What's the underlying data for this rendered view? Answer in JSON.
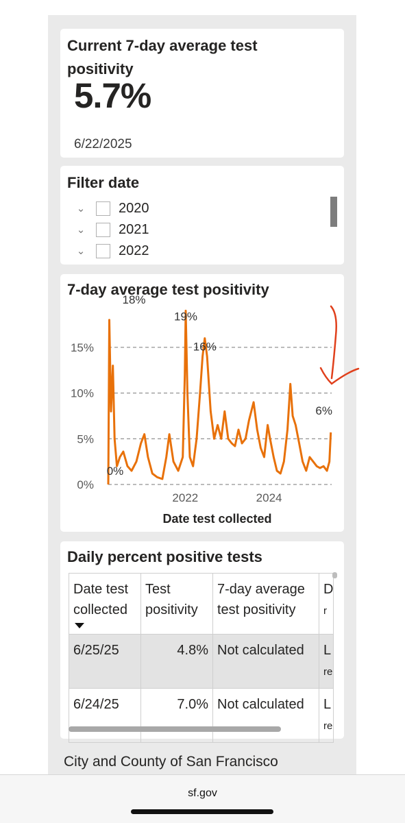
{
  "kpi": {
    "title": "Current 7-day average test positivity",
    "value": "5.7%",
    "date": "6/22/2025"
  },
  "filter": {
    "title": "Filter date",
    "items": [
      {
        "label": "2020",
        "checked": false
      },
      {
        "label": "2021",
        "checked": false
      },
      {
        "label": "2022",
        "checked": false
      }
    ]
  },
  "chart": {
    "title": "7-day average test positivity",
    "x_title": "Date test collected",
    "y_ticks": [
      "15%",
      "10%",
      "5%",
      "0%"
    ],
    "x_ticks": [
      "2022",
      "2024"
    ],
    "labels": [
      "18%",
      "19%",
      "16%",
      "6%",
      "0%"
    ],
    "line_color": "#e8710a",
    "annotation_color": "#e0401c"
  },
  "chart_data": {
    "type": "line",
    "title": "7-day average test positivity",
    "xlabel": "Date test collected",
    "ylabel": "",
    "ylim": [
      0,
      20
    ],
    "grid": "horizontal dashed",
    "x_ticks": [
      "2022",
      "2024"
    ],
    "series": [
      {
        "values_by_date": [
          [
            "2020-03-01",
            0
          ],
          [
            "2020-03-10",
            18
          ],
          [
            "2020-03-25",
            8
          ],
          [
            "2020-04-10",
            13
          ],
          [
            "2020-04-25",
            5
          ],
          [
            "2020-05-15",
            2
          ],
          [
            "2020-06-10",
            3
          ],
          [
            "2020-07-10",
            3.6
          ],
          [
            "2020-08-15",
            2
          ],
          [
            "2020-09-20",
            1.5
          ],
          [
            "2020-11-01",
            2.5
          ],
          [
            "2020-12-10",
            4.5
          ],
          [
            "2021-01-10",
            5.5
          ],
          [
            "2021-02-10",
            3
          ],
          [
            "2021-03-20",
            1.2
          ],
          [
            "2021-05-01",
            0.8
          ],
          [
            "2021-06-15",
            0.6
          ],
          [
            "2021-07-20",
            3
          ],
          [
            "2021-08-15",
            5.5
          ],
          [
            "2021-09-20",
            2.5
          ],
          [
            "2021-11-01",
            1.5
          ],
          [
            "2021-12-10",
            3
          ],
          [
            "2021-12-28",
            12
          ],
          [
            "2022-01-05",
            19
          ],
          [
            "2022-01-20",
            10
          ],
          [
            "2022-02-10",
            3
          ],
          [
            "2022-03-10",
            2
          ],
          [
            "2022-04-10",
            5
          ],
          [
            "2022-05-10",
            10
          ],
          [
            "2022-06-01",
            14
          ],
          [
            "2022-06-20",
            16
          ],
          [
            "2022-07-10",
            14
          ],
          [
            "2022-08-10",
            8
          ],
          [
            "2022-09-10",
            5
          ],
          [
            "2022-10-10",
            6.5
          ],
          [
            "2022-11-10",
            5
          ],
          [
            "2022-12-10",
            8
          ],
          [
            "2023-01-10",
            5
          ],
          [
            "2023-02-10",
            4.5
          ],
          [
            "2023-03-10",
            4.2
          ],
          [
            "2023-04-10",
            6
          ],
          [
            "2023-05-10",
            4.5
          ],
          [
            "2023-06-10",
            5
          ],
          [
            "2023-07-10",
            7
          ],
          [
            "2023-08-20",
            9
          ],
          [
            "2023-09-20",
            6
          ],
          [
            "2023-10-20",
            4
          ],
          [
            "2023-11-20",
            3
          ],
          [
            "2023-12-20",
            6.5
          ],
          [
            "2024-01-10",
            5
          ],
          [
            "2024-02-10",
            3
          ],
          [
            "2024-03-10",
            1.5
          ],
          [
            "2024-04-10",
            1.2
          ],
          [
            "2024-05-10",
            2.5
          ],
          [
            "2024-06-10",
            6
          ],
          [
            "2024-07-05",
            11
          ],
          [
            "2024-07-25",
            7.5
          ],
          [
            "2024-08-20",
            6.5
          ],
          [
            "2024-09-20",
            4.5
          ],
          [
            "2024-10-20",
            2.5
          ],
          [
            "2024-11-20",
            1.5
          ],
          [
            "2024-12-20",
            3
          ],
          [
            "2025-01-20",
            2.5
          ],
          [
            "2025-02-20",
            2
          ],
          [
            "2025-03-20",
            1.8
          ],
          [
            "2025-04-20",
            2
          ],
          [
            "2025-05-20",
            1.5
          ],
          [
            "2025-06-10",
            2.5
          ],
          [
            "2025-06-22",
            5.7
          ]
        ]
      }
    ]
  },
  "table": {
    "title": "Daily percent positive tests",
    "columns": [
      "Date test collected",
      "Test positivity",
      "7-day average test positivity",
      "Data reported"
    ],
    "col_head_visible": [
      "D",
      "r"
    ],
    "sort_icon": "sort-desc-icon",
    "rows": [
      {
        "date": "6/25/25",
        "positivity": "4.8%",
        "avg": "Not calculated",
        "note_a": "L",
        "note_b": "re"
      },
      {
        "date": "6/24/25",
        "positivity": "7.0%",
        "avg": "Not calculated",
        "note_a": "L",
        "note_b": "re"
      }
    ]
  },
  "footer": {
    "org": "City and County of San Francisco",
    "url": "sf.gov"
  }
}
